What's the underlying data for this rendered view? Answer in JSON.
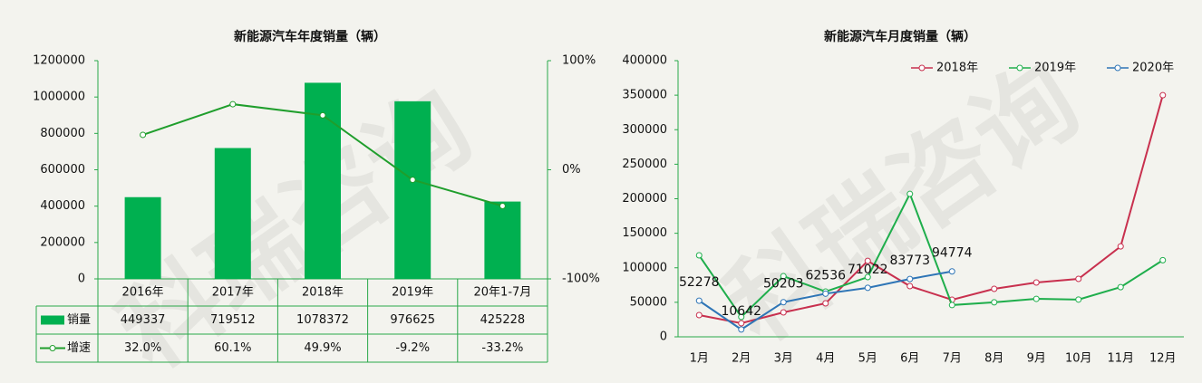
{
  "watermark": "科瑞咨询",
  "chart_data": [
    {
      "type": "combo",
      "title": "新能源汽车年度销量（辆）",
      "categories": [
        "2016年",
        "2017年",
        "2018年",
        "2019年",
        "20年1-7月"
      ],
      "series": [
        {
          "name": "销量",
          "type": "bar",
          "color": "#00b050",
          "values": [
            449337,
            719512,
            1078372,
            976625,
            425228
          ]
        },
        {
          "name": "增速",
          "type": "line",
          "axis": "y2",
          "color": "#1f9e2c",
          "values": [
            32.0,
            60.1,
            49.9,
            -9.2,
            -33.2
          ],
          "value_labels": [
            "32.0%",
            "60.1%",
            "49.9%",
            "-9.2%",
            "-33.2%"
          ]
        }
      ],
      "ylim": [
        0,
        1200000
      ],
      "yticks": [
        0,
        200000,
        400000,
        600000,
        800000,
        1000000,
        1200000
      ],
      "y2lim": [
        -100,
        100
      ],
      "y2ticks": [
        {
          "value": -100,
          "label": "-100%"
        },
        {
          "value": 0,
          "label": "0%"
        },
        {
          "value": 100,
          "label": "100%"
        }
      ]
    },
    {
      "type": "line",
      "title": "新能源汽车月度销量（辆）",
      "categories": [
        "1月",
        "2月",
        "3月",
        "4月",
        "5月",
        "6月",
        "7月",
        "8月",
        "9月",
        "10月",
        "11月",
        "12月"
      ],
      "series": [
        {
          "name": "2018年",
          "color": "#c8304e",
          "values": [
            31500,
            19700,
            35400,
            48500,
            110000,
            73400,
            53700,
            69500,
            78700,
            83900,
            131000,
            350000
          ]
        },
        {
          "name": "2019年",
          "color": "#1fae4c",
          "values": [
            118000,
            28800,
            87800,
            65500,
            86500,
            207000,
            46000,
            50000,
            55000,
            54000,
            72000,
            111000
          ]
        },
        {
          "name": "2020年",
          "color": "#2e75b6",
          "values": [
            52278,
            10642,
            50203,
            62536,
            71022,
            83773,
            94774,
            null,
            null,
            null,
            null,
            null
          ],
          "data_labels": true
        }
      ],
      "ylim": [
        0,
        400000
      ],
      "yticks": [
        0,
        50000,
        100000,
        150000,
        200000,
        250000,
        300000,
        350000,
        400000
      ],
      "legend": "top"
    }
  ]
}
